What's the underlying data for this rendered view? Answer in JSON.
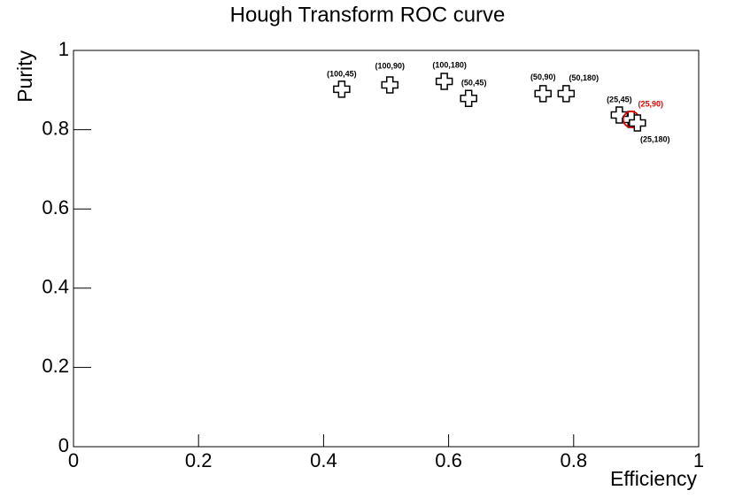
{
  "chart_data": {
    "type": "scatter",
    "title": "Hough Transform ROC curve",
    "x_label": "Efficiency",
    "y_label": "Purity",
    "xlim": [
      0,
      1
    ],
    "ylim": [
      0,
      1
    ],
    "xticks": [
      0,
      0.2,
      0.4,
      0.6,
      0.8,
      1
    ],
    "yticks": [
      0,
      0.2,
      0.4,
      0.6,
      0.8,
      1
    ],
    "series": [
      {
        "color": "#000000",
        "x": [
          0.429,
          0.506,
          0.593,
          0.632,
          0.751,
          0.788,
          0.873,
          0.892,
          0.902
        ],
        "values": [
          0.902,
          0.913,
          0.922,
          0.879,
          0.891,
          0.891,
          0.837,
          0.826,
          0.817
        ],
        "point_labels": [
          "(100,45)",
          "(100,90)",
          "(100,180)",
          "(50,45)",
          "(50,90)",
          "(50,180)",
          "(25,45)",
          "(25,90)",
          "(25,180)"
        ]
      }
    ],
    "highlight": {
      "index": 7,
      "color": "#e00000"
    }
  }
}
